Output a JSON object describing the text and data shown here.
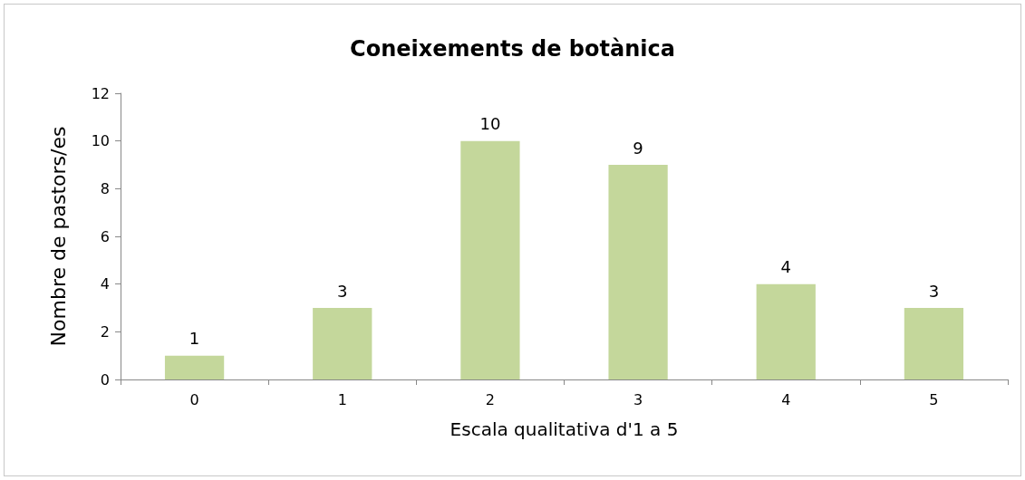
{
  "chart_data": {
    "type": "bar",
    "title": "Coneixements de botànica",
    "xlabel": "Escala qualitativa d'1 a 5",
    "ylabel": "Nombre de pastors/es",
    "categories": [
      "0",
      "1",
      "2",
      "3",
      "4",
      "5"
    ],
    "values": [
      1,
      3,
      10,
      9,
      4,
      3
    ],
    "color": "#c4d79b",
    "ylim": [
      0,
      12
    ],
    "yticks": [
      0,
      2,
      4,
      6,
      8,
      10,
      12
    ],
    "grid": false,
    "data_labels": true
  }
}
